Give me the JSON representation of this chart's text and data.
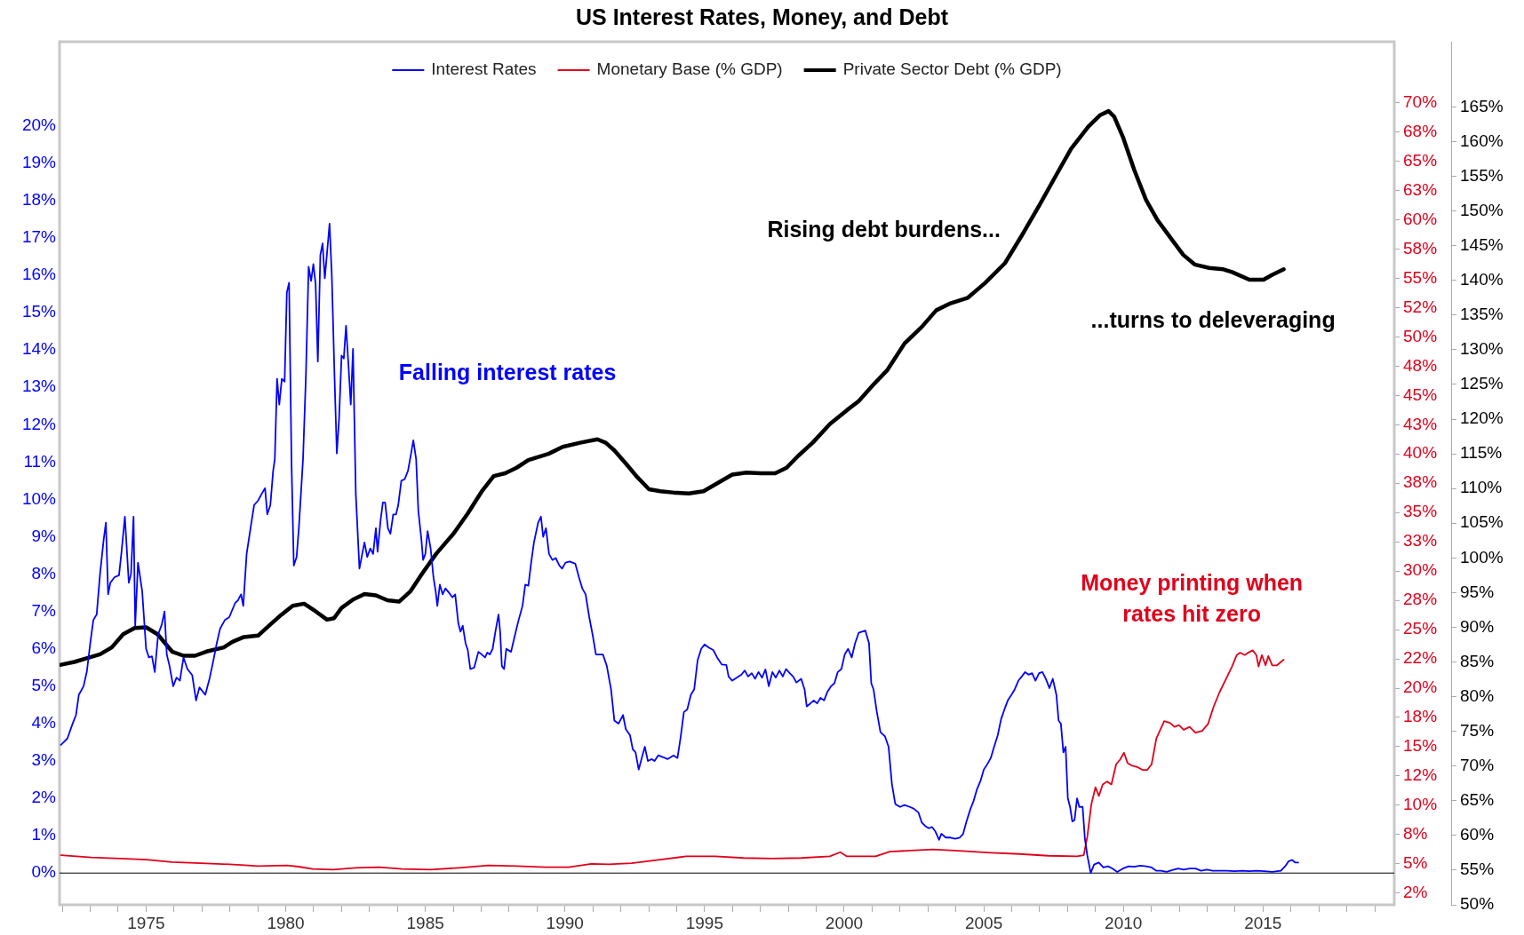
{
  "chart_data": {
    "type": "line",
    "title": "US Interest Rates, Money, and Debt",
    "legend": "top",
    "grid": false,
    "marker": "none",
    "line_style": "solid",
    "xlim": [
      1971.9,
      2019.7
    ],
    "xticks": [
      {
        "value": 1972,
        "label": null
      },
      {
        "value": 1973,
        "label": null
      },
      {
        "value": 1974,
        "label": null
      },
      1975,
      {
        "value": 1976,
        "label": null
      },
      {
        "value": 1977,
        "label": null
      },
      {
        "value": 1978,
        "label": null
      },
      {
        "value": 1979,
        "label": null
      },
      1980,
      {
        "value": 1981,
        "label": null
      },
      {
        "value": 1982,
        "label": null
      },
      {
        "value": 1983,
        "label": null
      },
      {
        "value": 1984,
        "label": null
      },
      1985,
      {
        "value": 1986,
        "label": null
      },
      {
        "value": 1987,
        "label": null
      },
      {
        "value": 1988,
        "label": null
      },
      {
        "value": 1989,
        "label": null
      },
      1990,
      {
        "value": 1991,
        "label": null
      },
      {
        "value": 1992,
        "label": null
      },
      {
        "value": 1993,
        "label": null
      },
      {
        "value": 1994,
        "label": null
      },
      1995,
      {
        "value": 1996,
        "label": null
      },
      {
        "value": 1997,
        "label": null
      },
      {
        "value": 1998,
        "label": null
      },
      {
        "value": 1999,
        "label": null
      },
      2000,
      {
        "value": 2001,
        "label": null
      },
      {
        "value": 2002,
        "label": null
      },
      {
        "value": 2003,
        "label": null
      },
      {
        "value": 2004,
        "label": null
      },
      2005,
      {
        "value": 2006,
        "label": null
      },
      {
        "value": 2007,
        "label": null
      },
      {
        "value": 2008,
        "label": null
      },
      {
        "value": 2009,
        "label": null
      },
      2010,
      {
        "value": 2011,
        "label": null
      },
      {
        "value": 2012,
        "label": null
      },
      {
        "value": 2013,
        "label": null
      },
      {
        "value": 2014,
        "label": null
      },
      2015,
      {
        "value": 2016,
        "label": null
      },
      {
        "value": 2017,
        "label": null
      },
      {
        "value": 2018,
        "label": null
      },
      {
        "value": 2019,
        "label": null
      }
    ],
    "ylim": [
      -0.85,
      22.25
    ],
    "yticks": [
      {
        "value": 0,
        "label": "0%"
      },
      {
        "value": 1,
        "label": "1%"
      },
      {
        "value": 2,
        "label": "2%"
      },
      {
        "value": 3,
        "label": "3%"
      },
      {
        "value": 4,
        "label": "4%"
      },
      {
        "value": 5,
        "label": "5%"
      },
      {
        "value": 6,
        "label": "6%"
      },
      {
        "value": 7,
        "label": "7%"
      },
      {
        "value": 8,
        "label": "8%"
      },
      {
        "value": 9,
        "label": "9%"
      },
      {
        "value": 10,
        "label": "10%"
      },
      {
        "value": 11,
        "label": "11%"
      },
      {
        "value": 12,
        "label": "12%"
      },
      {
        "value": 13,
        "label": "13%"
      },
      {
        "value": 14,
        "label": "14%"
      },
      {
        "value": 15,
        "label": "15%"
      },
      {
        "value": 16,
        "label": "16%"
      },
      {
        "value": 17,
        "label": "17%"
      },
      {
        "value": 18,
        "label": "18%"
      },
      {
        "value": 19,
        "label": "19%"
      },
      {
        "value": 20,
        "label": "20%"
      }
    ],
    "y2lim": [
      1.5,
      75.2
    ],
    "y2ticks": [
      {
        "value": 2.5,
        "label": "2%"
      },
      {
        "value": 5,
        "label": "5%"
      },
      {
        "value": 7.5,
        "label": "8%"
      },
      {
        "value": 10,
        "label": "10%"
      },
      {
        "value": 12.5,
        "label": "12%"
      },
      {
        "value": 15,
        "label": "15%"
      },
      {
        "value": 17.5,
        "label": "18%"
      },
      {
        "value": 20,
        "label": "20%"
      },
      {
        "value": 22.5,
        "label": "22%"
      },
      {
        "value": 25,
        "label": "25%"
      },
      {
        "value": 27.5,
        "label": "28%"
      },
      {
        "value": 30,
        "label": "30%"
      },
      {
        "value": 32.5,
        "label": "33%"
      },
      {
        "value": 35,
        "label": "35%"
      },
      {
        "value": 37.5,
        "label": "38%"
      },
      {
        "value": 40,
        "label": "40%"
      },
      {
        "value": 42.5,
        "label": "43%"
      },
      {
        "value": 45,
        "label": "45%"
      },
      {
        "value": 47.5,
        "label": "48%"
      },
      {
        "value": 50,
        "label": "50%"
      },
      {
        "value": 52.5,
        "label": "52%"
      },
      {
        "value": 55,
        "label": "55%"
      },
      {
        "value": 57.5,
        "label": "58%"
      },
      {
        "value": 60,
        "label": "60%"
      },
      {
        "value": 62.5,
        "label": "63%"
      },
      {
        "value": 65,
        "label": "65%"
      },
      {
        "value": 67.5,
        "label": "68%"
      },
      {
        "value": 70,
        "label": "70%"
      }
    ],
    "y3lim": [
      50,
      174.4
    ],
    "y3ticks": [
      {
        "value": 50,
        "label": "50%"
      },
      {
        "value": 55,
        "label": "55%"
      },
      {
        "value": 60,
        "label": "60%"
      },
      {
        "value": 65,
        "label": "65%"
      },
      {
        "value": 70,
        "label": "70%"
      },
      {
        "value": 75,
        "label": "75%"
      },
      {
        "value": 80,
        "label": "80%"
      },
      {
        "value": 85,
        "label": "85%"
      },
      {
        "value": 90,
        "label": "90%"
      },
      {
        "value": 95,
        "label": "95%"
      },
      {
        "value": 100,
        "label": "100%"
      },
      {
        "value": 105,
        "label": "105%"
      },
      {
        "value": 110,
        "label": "110%"
      },
      {
        "value": 115,
        "label": "115%"
      },
      {
        "value": 120,
        "label": "120%"
      },
      {
        "value": 125,
        "label": "125%"
      },
      {
        "value": 130,
        "label": "130%"
      },
      {
        "value": 135,
        "label": "135%"
      },
      {
        "value": 140,
        "label": "140%"
      },
      {
        "value": 145,
        "label": "145%"
      },
      {
        "value": 150,
        "label": "150%"
      },
      {
        "value": 155,
        "label": "155%"
      },
      {
        "value": 160,
        "label": "160%"
      },
      {
        "value": 165,
        "label": "165%"
      }
    ],
    "ref_lines": [
      {
        "axis": "y",
        "value": 0,
        "color": "#000000"
      }
    ],
    "annotations": [
      "Falling interest rates",
      "Rising debt burdens...",
      "...turns to deleveraging",
      "Money printing when rates hit zero"
    ],
    "series": [
      {
        "name": "Interest Rates",
        "color": "#0000ff",
        "axis": "y",
        "x": [
          1971.95,
          1972.18,
          1972.37,
          1972.49,
          1972.59,
          1972.76,
          1972.88,
          1973.0,
          1973.11,
          1973.23,
          1973.35,
          1973.48,
          1973.56,
          1973.64,
          1973.72,
          1973.87,
          1974.03,
          1974.12,
          1974.24,
          1974.38,
          1974.46,
          1974.55,
          1974.61,
          1974.71,
          1974.86,
          1975.0,
          1975.1,
          1975.21,
          1975.31,
          1975.43,
          1975.56,
          1975.66,
          1975.74,
          1975.84,
          1975.97,
          1976.09,
          1976.21,
          1976.34,
          1976.48,
          1976.65,
          1976.79,
          1976.91,
          1977.12,
          1977.28,
          1977.41,
          1977.53,
          1977.65,
          1977.82,
          1977.98,
          1978.19,
          1978.29,
          1978.4,
          1978.48,
          1978.6,
          1978.77,
          1978.87,
          1979.01,
          1979.14,
          1979.26,
          1979.34,
          1979.45,
          1979.55,
          1979.61,
          1979.69,
          1979.77,
          1979.86,
          1979.96,
          1980.04,
          1980.12,
          1980.21,
          1980.29,
          1980.39,
          1980.47,
          1980.62,
          1980.72,
          1980.82,
          1980.91,
          1980.99,
          1981.07,
          1981.15,
          1981.24,
          1981.32,
          1981.4,
          1981.48,
          1981.57,
          1981.65,
          1981.75,
          1981.83,
          1981.91,
          1982.0,
          1982.08,
          1982.16,
          1982.24,
          1982.33,
          1982.41,
          1982.51,
          1982.64,
          1982.74,
          1982.82,
          1982.92,
          1983.03,
          1983.13,
          1983.23,
          1983.29,
          1983.4,
          1983.48,
          1983.56,
          1983.66,
          1983.75,
          1983.85,
          1983.95,
          1984.03,
          1984.14,
          1984.26,
          1984.38,
          1984.49,
          1984.57,
          1984.67,
          1984.75,
          1984.86,
          1984.92,
          1985.0,
          1985.08,
          1985.19,
          1985.29,
          1985.37,
          1985.43,
          1985.52,
          1985.62,
          1985.72,
          1985.85,
          1985.97,
          1986.07,
          1986.18,
          1986.26,
          1986.34,
          1986.44,
          1986.52,
          1986.61,
          1986.75,
          1986.9,
          1987.02,
          1987.14,
          1987.22,
          1987.31,
          1987.41,
          1987.51,
          1987.62,
          1987.68,
          1987.74,
          1987.82,
          1987.9,
          1988.07,
          1988.19,
          1988.34,
          1988.48,
          1988.58,
          1988.69,
          1988.79,
          1988.89,
          1989.04,
          1989.14,
          1989.22,
          1989.32,
          1989.43,
          1989.55,
          1989.67,
          1989.8,
          1989.9,
          1990.02,
          1990.17,
          1990.37,
          1990.5,
          1990.62,
          1990.74,
          1990.87,
          1990.99,
          1991.11,
          1991.36,
          1991.5,
          1991.65,
          1991.77,
          1991.92,
          1992.08,
          1992.18,
          1992.33,
          1992.43,
          1992.53,
          1992.64,
          1992.74,
          1992.86,
          1992.97,
          1993.11,
          1993.21,
          1993.34,
          1993.52,
          1993.67,
          1993.89,
          1994.03,
          1994.14,
          1994.26,
          1994.38,
          1994.51,
          1994.63,
          1994.75,
          1994.88,
          1995.0,
          1995.16,
          1995.31,
          1995.45,
          1995.62,
          1995.78,
          1995.86,
          1995.99,
          1996.15,
          1996.32,
          1996.44,
          1996.56,
          1996.69,
          1996.81,
          1996.93,
          1997.06,
          1997.18,
          1997.3,
          1997.43,
          1997.55,
          1997.68,
          1997.8,
          1997.92,
          1998.05,
          1998.17,
          1998.29,
          1998.46,
          1998.58,
          1998.66,
          1998.79,
          1998.91,
          1999.03,
          1999.15,
          1999.28,
          1999.4,
          1999.53,
          1999.65,
          1999.77,
          1999.9,
          2000.02,
          2000.14,
          2000.27,
          2000.39,
          2000.52,
          2000.64,
          2000.76,
          2000.89,
          2000.97,
          2001.05,
          2001.17,
          2001.3,
          2001.46,
          2001.59,
          2001.71,
          2001.83,
          2002.0,
          2002.16,
          2002.35,
          2002.5,
          2002.66,
          2002.78,
          2002.9,
          2003.03,
          2003.15,
          2003.27,
          2003.4,
          2003.48,
          2003.64,
          2003.81,
          2003.97,
          2004.14,
          2004.26,
          2004.38,
          2004.51,
          2004.63,
          2004.75,
          2004.88,
          2005.0,
          2005.13,
          2005.25,
          2005.37,
          2005.5,
          2005.62,
          2005.74,
          2005.86,
          2005.99,
          2006.11,
          2006.24,
          2006.36,
          2006.48,
          2006.6,
          2006.73,
          2006.85,
          2006.98,
          2007.1,
          2007.22,
          2007.35,
          2007.47,
          2007.6,
          2007.68,
          2007.76,
          2007.85,
          2007.93,
          2008.01,
          2008.09,
          2008.17,
          2008.25,
          2008.34,
          2008.42,
          2008.54,
          2008.62,
          2008.71,
          2008.83,
          2008.95,
          2009.12,
          2009.28,
          2009.45,
          2009.61,
          2009.78,
          2009.98,
          2010.19,
          2010.39,
          2010.6,
          2010.81,
          2011.01,
          2011.18,
          2011.34,
          2011.55,
          2011.75,
          2011.96,
          2012.16,
          2012.37,
          2012.58,
          2012.78,
          2012.99,
          2013.19,
          2013.4,
          2013.69,
          2013.98,
          2014.26,
          2014.51,
          2014.76,
          2015.04,
          2015.33,
          2015.64,
          2015.79,
          2015.91,
          2016.04,
          2016.16,
          2016.26
        ],
        "values": [
          3.43,
          3.6,
          4.0,
          4.23,
          4.77,
          5.0,
          5.4,
          6.15,
          6.77,
          6.92,
          8.0,
          8.92,
          9.38,
          7.46,
          7.77,
          7.92,
          7.97,
          8.6,
          9.54,
          7.77,
          8.0,
          9.54,
          6.62,
          8.31,
          7.54,
          6.0,
          5.77,
          5.8,
          5.38,
          6.38,
          6.65,
          7.0,
          5.85,
          5.54,
          5.0,
          5.23,
          5.15,
          5.77,
          5.46,
          5.3,
          4.62,
          4.97,
          4.77,
          5.23,
          5.69,
          6.15,
          6.54,
          6.77,
          6.85,
          7.23,
          7.3,
          7.46,
          7.15,
          8.54,
          9.38,
          9.85,
          9.97,
          10.15,
          10.3,
          9.6,
          9.85,
          10.77,
          11.08,
          13.23,
          12.54,
          13.23,
          13.15,
          15.54,
          15.8,
          10.9,
          8.23,
          8.46,
          9.23,
          11.08,
          13.23,
          16.23,
          15.85,
          16.3,
          15.77,
          13.69,
          16.54,
          16.85,
          15.92,
          16.6,
          17.38,
          16.0,
          13.23,
          11.23,
          12.15,
          13.85,
          13.77,
          14.65,
          13.69,
          12.54,
          14.03,
          10.15,
          8.15,
          8.54,
          8.85,
          8.46,
          8.69,
          8.54,
          9.23,
          8.6,
          9.46,
          9.92,
          9.92,
          9.23,
          9.08,
          9.6,
          9.6,
          9.85,
          10.5,
          10.54,
          10.77,
          11.23,
          11.58,
          11.08,
          9.69,
          8.92,
          8.38,
          8.54,
          9.15,
          8.69,
          7.92,
          7.54,
          7.15,
          7.72,
          7.46,
          7.62,
          7.5,
          7.38,
          7.46,
          6.69,
          6.46,
          6.62,
          6.15,
          5.97,
          5.46,
          5.5,
          5.92,
          5.85,
          5.77,
          5.9,
          5.85,
          6.0,
          6.46,
          6.92,
          6.46,
          5.54,
          5.46,
          6.0,
          5.92,
          6.31,
          6.77,
          7.15,
          7.72,
          7.69,
          8.31,
          8.85,
          9.38,
          9.54,
          9.0,
          9.23,
          8.54,
          8.38,
          8.43,
          8.23,
          8.15,
          8.31,
          8.34,
          8.28,
          7.92,
          7.62,
          7.46,
          6.85,
          6.38,
          5.85,
          5.85,
          5.54,
          4.92,
          4.08,
          4.0,
          4.23,
          3.85,
          3.69,
          3.31,
          3.23,
          2.77,
          3.05,
          3.38,
          3.0,
          3.05,
          3.0,
          3.15,
          3.1,
          3.05,
          3.15,
          3.08,
          3.62,
          4.31,
          4.38,
          4.77,
          4.92,
          5.69,
          6.0,
          6.12,
          6.03,
          5.97,
          5.77,
          5.58,
          5.57,
          5.26,
          5.15,
          5.23,
          5.31,
          5.42,
          5.26,
          5.35,
          5.2,
          5.38,
          5.23,
          5.45,
          5.0,
          5.38,
          5.23,
          5.42,
          5.26,
          5.46,
          5.35,
          5.26,
          5.1,
          5.2,
          4.92,
          4.46,
          4.54,
          4.62,
          4.54,
          4.69,
          4.62,
          4.85,
          5.0,
          5.08,
          5.38,
          5.46,
          5.85,
          6.0,
          5.77,
          6.15,
          6.43,
          6.46,
          6.49,
          6.15,
          5.08,
          4.92,
          4.31,
          3.77,
          3.66,
          3.38,
          2.38,
          1.85,
          1.77,
          1.82,
          1.77,
          1.72,
          1.62,
          1.35,
          1.26,
          1.2,
          1.23,
          1.11,
          0.89,
          1.05,
          0.95,
          0.95,
          0.92,
          0.95,
          1.05,
          1.38,
          1.69,
          1.92,
          2.23,
          2.46,
          2.77,
          2.92,
          3.08,
          3.38,
          3.69,
          4.12,
          4.38,
          4.62,
          4.77,
          4.92,
          5.15,
          5.26,
          5.38,
          5.31,
          5.35,
          5.15,
          5.35,
          5.38,
          5.2,
          4.95,
          5.2,
          4.77,
          4.08,
          4.0,
          3.23,
          3.38,
          2.0,
          1.77,
          1.38,
          1.42,
          2.0,
          1.77,
          1.77,
          0.92,
          0.46,
          0.0,
          0.23,
          0.28,
          0.15,
          0.18,
          0.12,
          0.03,
          0.12,
          0.18,
          0.17,
          0.2,
          0.18,
          0.15,
          0.06,
          0.06,
          0.03,
          0.08,
          0.12,
          0.09,
          0.12,
          0.12,
          0.06,
          0.09,
          0.06,
          0.06,
          0.06,
          0.05,
          0.06,
          0.05,
          0.06,
          0.05,
          0.03,
          0.06,
          0.18,
          0.31,
          0.35,
          0.28,
          0.28
        ]
      },
      {
        "name": "Monetary Base (% GDP)",
        "color": "#e0001b",
        "axis": "y2",
        "x": [
          1971.95,
          1973.04,
          1974.07,
          1975.0,
          1975.93,
          1976.96,
          1977.98,
          1978.4,
          1979.01,
          1980.04,
          1980.45,
          1980.97,
          1981.69,
          1982.51,
          1983.34,
          1984.16,
          1985.19,
          1986.22,
          1987.25,
          1988.27,
          1989.3,
          1990.13,
          1990.95,
          1991.57,
          1992.39,
          1993.42,
          1994.34,
          1995.37,
          1996.4,
          1997.43,
          1998.46,
          1999.49,
          1999.86,
          2000.1,
          2001.13,
          2001.63,
          2002.37,
          2003.19,
          2004.22,
          2005.25,
          2006.28,
          2007.31,
          2008.34,
          2008.58,
          2008.71,
          2008.85,
          2009.0,
          2009.12,
          2009.26,
          2009.41,
          2009.57,
          2009.74,
          2009.88,
          2010.02,
          2010.15,
          2010.29,
          2010.5,
          2010.7,
          2010.85,
          2011.01,
          2011.18,
          2011.46,
          2011.67,
          2011.83,
          2011.99,
          2012.16,
          2012.37,
          2012.58,
          2012.82,
          2013.03,
          2013.23,
          2013.44,
          2013.69,
          2013.89,
          2014.06,
          2014.18,
          2014.34,
          2014.51,
          2014.63,
          2014.76,
          2014.84,
          2014.96,
          2015.09,
          2015.19,
          2015.33,
          2015.5,
          2015.64,
          2015.74
        ],
        "values": [
          5.74,
          5.55,
          5.45,
          5.35,
          5.15,
          5.05,
          4.96,
          4.91,
          4.81,
          4.86,
          4.76,
          4.56,
          4.51,
          4.66,
          4.71,
          4.56,
          4.51,
          4.66,
          4.86,
          4.81,
          4.71,
          4.71,
          5.0,
          4.96,
          5.05,
          5.35,
          5.64,
          5.64,
          5.5,
          5.45,
          5.5,
          5.64,
          5.99,
          5.64,
          5.64,
          6.04,
          6.13,
          6.23,
          6.09,
          5.94,
          5.84,
          5.69,
          5.64,
          5.74,
          7.36,
          10.06,
          11.54,
          10.8,
          11.78,
          12.03,
          11.78,
          13.5,
          13.9,
          14.48,
          13.6,
          13.4,
          13.26,
          13.01,
          13.01,
          13.5,
          15.71,
          17.19,
          17.04,
          16.69,
          16.84,
          16.45,
          16.69,
          16.2,
          16.35,
          16.94,
          18.41,
          19.64,
          20.87,
          21.85,
          22.83,
          23.03,
          22.83,
          23.08,
          23.23,
          22.83,
          21.85,
          22.83,
          21.95,
          22.74,
          21.95,
          21.95,
          22.24,
          22.44
        ]
      },
      {
        "name": "Private Sector Debt (% GDP)",
        "color": "#000000",
        "axis": "y3",
        "x": [
          1971.95,
          1972.43,
          1972.84,
          1973.35,
          1973.77,
          1974.18,
          1974.59,
          1975.0,
          1975.41,
          1975.93,
          1976.34,
          1976.75,
          1977.16,
          1977.78,
          1978.09,
          1978.5,
          1979.01,
          1979.42,
          1979.84,
          1980.25,
          1980.66,
          1981.07,
          1981.48,
          1981.73,
          1982.0,
          1982.41,
          1982.82,
          1983.23,
          1983.64,
          1984.06,
          1984.47,
          1984.88,
          1985.39,
          1986.01,
          1986.52,
          1987.04,
          1987.45,
          1987.86,
          1988.27,
          1988.69,
          1989.41,
          1989.92,
          1990.54,
          1991.16,
          1991.46,
          1991.77,
          1992.18,
          1992.6,
          1993.01,
          1993.42,
          1993.93,
          1994.44,
          1994.96,
          1995.47,
          1995.99,
          1996.5,
          1997.02,
          1997.53,
          1997.94,
          1998.35,
          1998.87,
          1999.49,
          2000.1,
          2000.52,
          2001.03,
          2001.55,
          2002.16,
          2002.78,
          2003.3,
          2003.81,
          2004.43,
          2005.04,
          2005.76,
          2006.38,
          2007.0,
          2007.61,
          2008.13,
          2008.75,
          2009.16,
          2009.47,
          2009.67,
          2009.98,
          2010.39,
          2010.81,
          2011.22,
          2011.73,
          2012.14,
          2012.55,
          2013.07,
          2013.58,
          2013.89,
          2014.51,
          2015.02,
          2015.33,
          2015.74
        ],
        "values": [
          84.6,
          85.0,
          85.5,
          86.1,
          87.1,
          89.0,
          89.9,
          90.0,
          89.0,
          86.5,
          85.9,
          85.9,
          86.5,
          87.1,
          87.9,
          88.6,
          88.8,
          90.3,
          91.8,
          93.1,
          93.4,
          92.3,
          91.1,
          91.3,
          92.8,
          94.0,
          94.8,
          94.6,
          93.9,
          93.7,
          95.2,
          97.7,
          100.6,
          103.5,
          106.4,
          109.7,
          111.8,
          112.2,
          113.0,
          114.1,
          115.0,
          116.0,
          116.6,
          117.1,
          116.6,
          115.5,
          113.6,
          111.6,
          109.9,
          109.6,
          109.4,
          109.3,
          109.6,
          110.8,
          112.0,
          112.3,
          112.2,
          112.2,
          113.0,
          114.7,
          116.6,
          119.3,
          121.3,
          122.6,
          124.9,
          127.1,
          130.9,
          133.3,
          135.7,
          136.7,
          137.5,
          139.6,
          142.5,
          146.6,
          150.9,
          155.3,
          159.0,
          162.2,
          163.8,
          164.4,
          163.6,
          160.7,
          155.9,
          151.6,
          148.7,
          145.9,
          143.7,
          142.3,
          141.8,
          141.6,
          141.2,
          140.1,
          140.1,
          140.8,
          141.6
        ]
      }
    ]
  }
}
